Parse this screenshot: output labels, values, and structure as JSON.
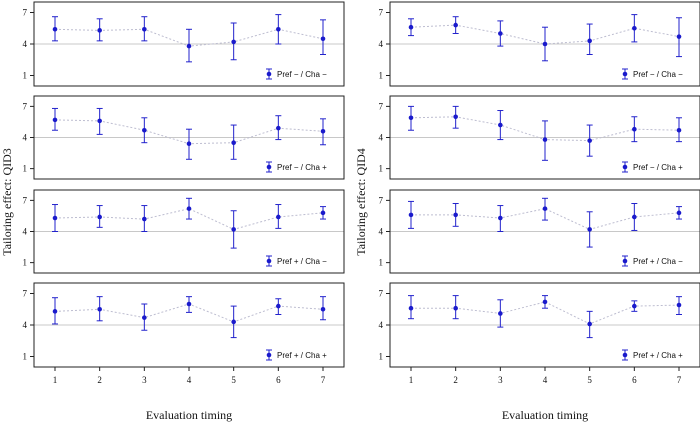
{
  "chart_data": [
    {
      "type": "scatter",
      "ylabel": "Tailoring effect: QID3",
      "xlabel": "Evaluation timing",
      "x": [
        1,
        2,
        3,
        4,
        5,
        6,
        7
      ],
      "ylim": [
        0,
        8
      ],
      "yticks": [
        1,
        4,
        7
      ],
      "error_bars": true,
      "reference_line": 4,
      "panels": [
        {
          "legend": "Pref − / Cha −",
          "mean": [
            5.4,
            5.3,
            5.4,
            3.8,
            4.2,
            5.4,
            4.5
          ],
          "lower": [
            4.3,
            4.3,
            4.3,
            2.3,
            2.5,
            4.0,
            3.0
          ],
          "upper": [
            6.6,
            6.4,
            6.6,
            5.4,
            6.0,
            6.8,
            6.3
          ]
        },
        {
          "legend": "Pref − / Cha +",
          "mean": [
            5.7,
            5.6,
            4.7,
            3.4,
            3.5,
            4.9,
            4.6
          ],
          "lower": [
            4.7,
            4.3,
            3.5,
            1.9,
            1.9,
            3.8,
            3.3
          ],
          "upper": [
            6.8,
            6.8,
            5.9,
            4.8,
            5.2,
            6.1,
            5.8
          ]
        },
        {
          "legend": "Pref + / Cha −",
          "mean": [
            5.3,
            5.4,
            5.2,
            6.2,
            4.2,
            5.4,
            5.8
          ],
          "lower": [
            4.0,
            4.4,
            4.0,
            5.2,
            2.4,
            4.3,
            5.2
          ],
          "upper": [
            6.6,
            6.5,
            6.5,
            7.2,
            6.0,
            6.6,
            6.4
          ]
        },
        {
          "legend": "Pref + / Cha +",
          "mean": [
            5.3,
            5.5,
            4.7,
            6.0,
            4.3,
            5.8,
            5.5
          ],
          "lower": [
            4.1,
            4.4,
            3.5,
            5.2,
            2.8,
            5.0,
            4.5
          ],
          "upper": [
            6.6,
            6.7,
            6.0,
            6.7,
            5.8,
            6.5,
            6.7
          ]
        }
      ]
    },
    {
      "type": "scatter",
      "ylabel": "Tailoring effect: QID4",
      "xlabel": "Evaluation timing",
      "x": [
        1,
        2,
        3,
        4,
        5,
        6,
        7
      ],
      "ylim": [
        0,
        8
      ],
      "yticks": [
        1,
        4,
        7
      ],
      "error_bars": true,
      "reference_line": 4,
      "panels": [
        {
          "legend": "Pref − / Cha −",
          "mean": [
            5.6,
            5.8,
            5.0,
            4.0,
            4.3,
            5.5,
            4.7
          ],
          "lower": [
            4.8,
            5.0,
            3.8,
            2.4,
            3.0,
            4.2,
            2.8
          ],
          "upper": [
            6.4,
            6.6,
            6.2,
            5.6,
            5.9,
            6.8,
            6.5
          ]
        },
        {
          "legend": "Pref − / Cha +",
          "mean": [
            5.9,
            6.0,
            5.2,
            3.8,
            3.7,
            4.8,
            4.7
          ],
          "lower": [
            4.7,
            4.9,
            3.8,
            1.8,
            2.2,
            3.6,
            3.6
          ],
          "upper": [
            7.0,
            7.0,
            6.6,
            5.6,
            5.2,
            6.0,
            5.9
          ]
        },
        {
          "legend": "Pref + / Cha −",
          "mean": [
            5.6,
            5.6,
            5.3,
            6.2,
            4.2,
            5.4,
            5.8
          ],
          "lower": [
            4.3,
            4.5,
            4.0,
            5.1,
            2.5,
            4.1,
            5.2
          ],
          "upper": [
            6.9,
            6.7,
            6.5,
            7.2,
            5.9,
            6.7,
            6.4
          ]
        },
        {
          "legend": "Pref + / Cha +",
          "mean": [
            5.6,
            5.6,
            5.1,
            6.2,
            4.1,
            5.8,
            5.9
          ],
          "lower": [
            4.6,
            4.6,
            3.8,
            5.6,
            2.8,
            5.3,
            5.0
          ],
          "upper": [
            6.8,
            6.8,
            6.4,
            6.8,
            5.3,
            6.3,
            6.7
          ]
        }
      ]
    }
  ]
}
